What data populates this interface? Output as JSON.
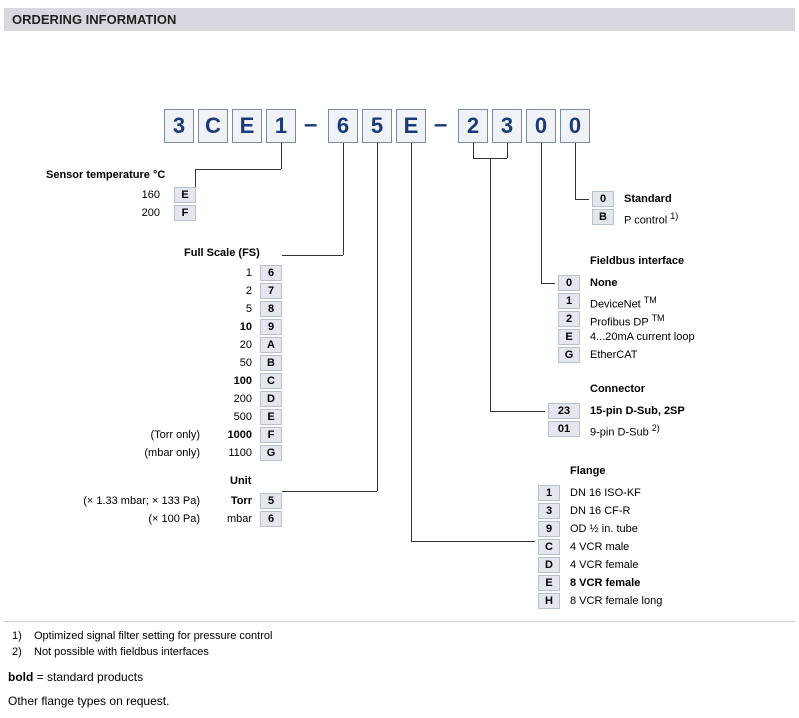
{
  "header": {
    "title": "ORDERING INFORMATION"
  },
  "partNumber": {
    "chars": [
      "3",
      "C",
      "E",
      "1",
      "6",
      "5",
      "E",
      "2",
      "3",
      "0",
      "0"
    ],
    "dash": "–"
  },
  "sensorTemp": {
    "heading": "Sensor temperature °C",
    "rows": [
      {
        "label": "160",
        "code": "E",
        "bold": false
      },
      {
        "label": "200",
        "code": "F",
        "bold": false
      }
    ]
  },
  "fullScale": {
    "heading": "Full Scale (FS)",
    "rows": [
      {
        "label": "1",
        "code": "6",
        "bold": false,
        "note": ""
      },
      {
        "label": "2",
        "code": "7",
        "bold": false,
        "note": ""
      },
      {
        "label": "5",
        "code": "8",
        "bold": false,
        "note": ""
      },
      {
        "label": "10",
        "code": "9",
        "bold": true,
        "note": ""
      },
      {
        "label": "20",
        "code": "A",
        "bold": false,
        "note": ""
      },
      {
        "label": "50",
        "code": "B",
        "bold": false,
        "note": ""
      },
      {
        "label": "100",
        "code": "C",
        "bold": true,
        "note": ""
      },
      {
        "label": "200",
        "code": "D",
        "bold": false,
        "note": ""
      },
      {
        "label": "500",
        "code": "E",
        "bold": false,
        "note": ""
      },
      {
        "label": "1000",
        "code": "F",
        "bold": true,
        "note": "(Torr only)"
      },
      {
        "label": "1100",
        "code": "G",
        "bold": false,
        "note": "(mbar only)"
      }
    ]
  },
  "unit": {
    "heading": "Unit",
    "rows": [
      {
        "label": "Torr",
        "code": "5",
        "bold": true,
        "note": "(× 1.33 mbar; × 133 Pa)"
      },
      {
        "label": "mbar",
        "code": "6",
        "bold": false,
        "note": "(× 100 Pa)"
      }
    ]
  },
  "lastGroup": {
    "rows": [
      {
        "code": "0",
        "label": "Standard",
        "bold": true
      },
      {
        "code": "B",
        "label": "P control",
        "bold": false,
        "sup": "1)"
      }
    ]
  },
  "fieldbus": {
    "heading": "Fieldbus interface",
    "rows": [
      {
        "code": "0",
        "label": "None",
        "bold": true
      },
      {
        "code": "1",
        "label": "DeviceNet",
        "tm": true
      },
      {
        "code": "2",
        "label": "Profibus DP",
        "tm": true
      },
      {
        "code": "E",
        "label": "4...20mA current loop"
      },
      {
        "code": "G",
        "label": "EtherCAT"
      }
    ]
  },
  "connector": {
    "heading": "Connector",
    "rows": [
      {
        "code": "23",
        "label": "15-pin D-Sub, 2SP",
        "bold": true
      },
      {
        "code": "01",
        "label": "9-pin D-Sub",
        "sup": "2)"
      }
    ]
  },
  "flange": {
    "heading": "Flange",
    "rows": [
      {
        "code": "1",
        "label": "DN 16 ISO-KF"
      },
      {
        "code": "3",
        "label": "DN 16 CF-R"
      },
      {
        "code": "9",
        "label": "OD ½ in. tube"
      },
      {
        "code": "C",
        "label": "4 VCR male"
      },
      {
        "code": "D",
        "label": "4 VCR female"
      },
      {
        "code": "E",
        "label": "8 VCR female",
        "bold": true
      },
      {
        "code": "H",
        "label": "8 VCR female long"
      }
    ]
  },
  "footnotes": [
    {
      "num": "1)",
      "text": "Optimized signal filter setting for pressure control"
    },
    {
      "num": "2)",
      "text": "Not possible with fieldbus interfaces"
    }
  ],
  "notes": {
    "boldNote": {
      "bold": "bold",
      "rest": " = standard products"
    },
    "otherFlange": "Other flange types on request."
  }
}
